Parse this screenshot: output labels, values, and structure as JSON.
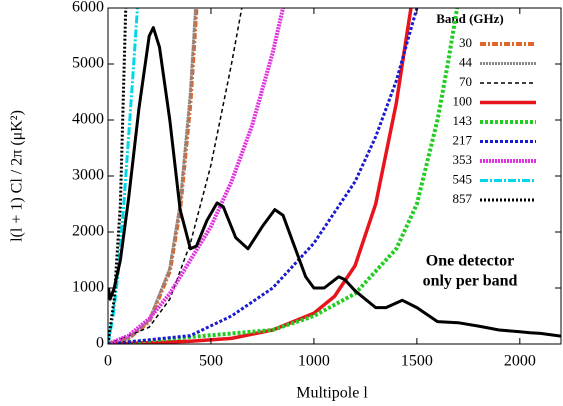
{
  "chart_data": {
    "type": "line",
    "xlabel": "Multipole l",
    "ylabel": "l(l + 1) Cl / 2π   (μK²)",
    "legend_title": "Band (GHz)",
    "annotation": [
      "One detector",
      "only per band"
    ],
    "legend": "upper right",
    "xlim": [
      0,
      2200
    ],
    "xticks": [
      0,
      500,
      1000,
      1500,
      2000
    ],
    "ylim": [
      0,
      6000
    ],
    "yticks": [
      0,
      1000,
      2000,
      3000,
      4000,
      5000,
      6000
    ],
    "cmb": {
      "color": "#000000",
      "x": [
        2,
        10,
        30,
        60,
        100,
        150,
        200,
        220,
        250,
        300,
        350,
        400,
        430,
        480,
        530,
        560,
        620,
        680,
        750,
        810,
        850,
        900,
        960,
        1000,
        1050,
        1120,
        1150,
        1200,
        1300,
        1350,
        1430,
        1500,
        1600,
        1700,
        1800,
        1900,
        2000,
        2050,
        2100,
        2200
      ],
      "values": [
        1000,
        800,
        1000,
        1500,
        2600,
        4200,
        5500,
        5650,
        5300,
        4000,
        2400,
        1700,
        1750,
        2200,
        2520,
        2450,
        1900,
        1700,
        2100,
        2400,
        2300,
        1800,
        1200,
        1000,
        1000,
        1200,
        1150,
        950,
        650,
        650,
        780,
        650,
        400,
        380,
        320,
        250,
        220,
        200,
        190,
        140
      ]
    },
    "series": [
      {
        "name": "30",
        "color": "#e0662a",
        "width": 4,
        "dash": "6 2 2 2",
        "x": [
          0,
          100,
          200,
          300,
          350,
          400,
          430,
          450
        ],
        "values": [
          0,
          100,
          400,
          1300,
          2400,
          4300,
          6000,
          7500
        ]
      },
      {
        "name": "44",
        "color": "#888888",
        "width": 3,
        "dash": "2 1",
        "x": [
          0,
          100,
          200,
          300,
          350,
          400,
          425,
          450
        ],
        "values": [
          0,
          100,
          420,
          1350,
          2500,
          4500,
          6000,
          7600
        ]
      },
      {
        "name": "70",
        "color": "#000000",
        "width": 1.5,
        "dash": "4 3",
        "x": [
          0,
          200,
          300,
          400,
          500,
          600,
          650
        ],
        "values": [
          0,
          300,
          800,
          1800,
          3200,
          5000,
          6000
        ]
      },
      {
        "name": "100",
        "color": "#e8141c",
        "width": 3.5,
        "dash": "",
        "x": [
          0,
          400,
          600,
          800,
          1000,
          1100,
          1200,
          1300,
          1400,
          1450,
          1480
        ],
        "values": [
          0,
          50,
          100,
          250,
          550,
          850,
          1400,
          2500,
          4300,
          5500,
          6200
        ]
      },
      {
        "name": "143",
        "color": "#22cc22",
        "width": 4,
        "dash": "3 2",
        "x": [
          0,
          800,
          1000,
          1200,
          1400,
          1500,
          1600,
          1650,
          1700
        ],
        "values": [
          0,
          250,
          500,
          900,
          1700,
          2500,
          4000,
          5000,
          6100
        ]
      },
      {
        "name": "217",
        "color": "#1a1ad0",
        "width": 3,
        "dash": "3 2",
        "x": [
          0,
          400,
          600,
          800,
          1000,
          1200,
          1300,
          1400,
          1500
        ],
        "values": [
          0,
          150,
          500,
          1000,
          1800,
          2900,
          3700,
          4700,
          6000
        ]
      },
      {
        "name": "353",
        "color": "#e030e0",
        "width": 4,
        "dash": "2 1",
        "x": [
          0,
          100,
          200,
          300,
          400,
          500,
          600,
          700,
          800,
          850
        ],
        "values": [
          0,
          150,
          450,
          900,
          1500,
          2100,
          2900,
          3900,
          5200,
          6000
        ]
      },
      {
        "name": "545",
        "color": "#00d8e8",
        "width": 3,
        "dash": "8 2 2 2",
        "x": [
          0,
          25,
          50,
          75,
          100,
          125,
          150
        ],
        "values": [
          0,
          500,
          1300,
          2400,
          3700,
          5000,
          6400
        ]
      },
      {
        "name": "857",
        "color": "#000000",
        "width": 3,
        "dash": "2 2",
        "x": [
          0,
          30,
          60,
          90
        ],
        "values": [
          0,
          800,
          2500,
          6500
        ]
      }
    ]
  }
}
